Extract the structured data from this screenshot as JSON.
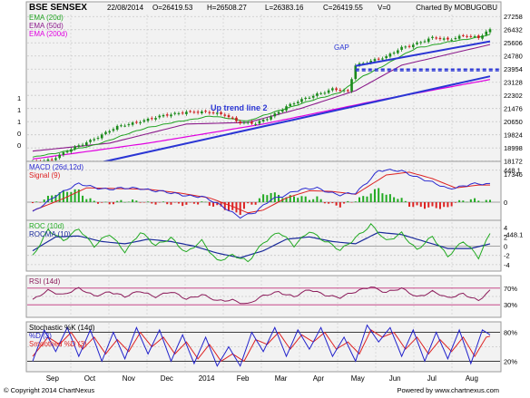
{
  "colors": {
    "panel_bg": "#f2f2f2",
    "grid": "#c8c8c8",
    "candle_up": "#1a8a1a",
    "candle_down": "#cc1f1f",
    "ema20": "#22a322",
    "ema50": "#8b1a8b",
    "ema200": "#e000e0",
    "trend": "#2a35d4",
    "macd": "#2a2ad0",
    "signal": "#dd2222",
    "roc": "#22aa22",
    "rocma": "#1a2a9a",
    "rsi": "#8b1a5a",
    "stoch_k": "#2222cc",
    "stoch_d": "#dd2222",
    "band_line": "#c0307a"
  },
  "header": {
    "index": "BSE SENSEX",
    "date": "22/08/2014",
    "open": "O=26419.53",
    "high": "H=26508.27",
    "low": "L=26383.16",
    "close": "C=26419.55",
    "volume": "V=0",
    "charted_by": "Charted By MOBUGOBU"
  },
  "footer": {
    "copyright": "© Copyright 2014 ChartNexus",
    "powered": "Powered by www.chartnexus.com"
  },
  "chart_data": [
    {
      "type": "candlestick",
      "legend": [
        "EMA (20d)",
        "EMA (50d)",
        "EMA (200d)"
      ],
      "y_ticks": [
        "27258",
        "26432",
        "25606",
        "24780",
        "23954",
        "23128",
        "22302",
        "21476",
        "20650",
        "19824",
        "18998",
        "18172",
        "17346"
      ],
      "left_ticks": [
        "1",
        "1",
        "1",
        "0",
        "0"
      ],
      "ylim": [
        16900,
        27500
      ],
      "annotations": [
        "GAP",
        "Up trend line 2"
      ],
      "x_labels": [
        "Sep",
        "Oct",
        "Nov",
        "Dec",
        "2014",
        "Feb",
        "Mar",
        "Apr",
        "May",
        "Jun",
        "Jul",
        "Aug"
      ],
      "close_keypoints": [
        [
          0,
          18100
        ],
        [
          5,
          18300
        ],
        [
          10,
          18900
        ],
        [
          16,
          19600
        ],
        [
          22,
          20300
        ],
        [
          28,
          20700
        ],
        [
          34,
          21000
        ],
        [
          40,
          21300
        ],
        [
          46,
          21200
        ],
        [
          50,
          21100
        ],
        [
          54,
          20600
        ],
        [
          58,
          20500
        ],
        [
          62,
          21000
        ],
        [
          66,
          21600
        ],
        [
          70,
          22000
        ],
        [
          74,
          22400
        ],
        [
          78,
          22700
        ],
        [
          82,
          22500
        ],
        [
          84,
          24200
        ],
        [
          88,
          24500
        ],
        [
          92,
          24700
        ],
        [
          96,
          25300
        ],
        [
          100,
          25600
        ],
        [
          104,
          25900
        ],
        [
          108,
          25800
        ],
        [
          112,
          26100
        ],
        [
          116,
          25900
        ],
        [
          119,
          26420
        ]
      ],
      "candle_count": 120,
      "ema_20_keypoints": [
        [
          0,
          18400
        ],
        [
          15,
          19100
        ],
        [
          30,
          20300
        ],
        [
          46,
          21000
        ],
        [
          56,
          20700
        ],
        [
          66,
          21500
        ],
        [
          80,
          22500
        ],
        [
          86,
          23500
        ],
        [
          100,
          25300
        ],
        [
          119,
          26100
        ]
      ],
      "ema_50_keypoints": [
        [
          0,
          18800
        ],
        [
          20,
          19300
        ],
        [
          40,
          20500
        ],
        [
          56,
          20600
        ],
        [
          70,
          21500
        ],
        [
          84,
          22600
        ],
        [
          96,
          24200
        ],
        [
          119,
          25500
        ]
      ],
      "ema_200_keypoints": [
        [
          0,
          18300
        ],
        [
          30,
          19300
        ],
        [
          60,
          20500
        ],
        [
          90,
          22000
        ],
        [
          119,
          23300
        ]
      ],
      "trend_lines": [
        {
          "from": [
            1,
            17200
          ],
          "to": [
            119,
            23500
          ]
        },
        {
          "from": [
            84,
            24150
          ],
          "to": [
            119,
            25700
          ]
        }
      ],
      "gap_levels": [
        23850,
        23950
      ]
    },
    {
      "type": "macd",
      "title_parts": [
        "MACD (26d,12d)",
        "Signal (9)"
      ],
      "y_ticks": [
        "448.1",
        "0",
        "-448.1"
      ],
      "ylim": [
        -520,
        520
      ],
      "macd_keypoints": [
        [
          0,
          -150
        ],
        [
          6,
          100
        ],
        [
          12,
          250
        ],
        [
          20,
          180
        ],
        [
          28,
          200
        ],
        [
          36,
          120
        ],
        [
          44,
          80
        ],
        [
          50,
          -80
        ],
        [
          54,
          -200
        ],
        [
          58,
          -150
        ],
        [
          62,
          40
        ],
        [
          68,
          150
        ],
        [
          74,
          200
        ],
        [
          80,
          100
        ],
        [
          84,
          120
        ],
        [
          90,
          450
        ],
        [
          96,
          430
        ],
        [
          102,
          320
        ],
        [
          108,
          180
        ],
        [
          114,
          260
        ],
        [
          119,
          240
        ]
      ],
      "signal_keypoints": [
        [
          0,
          -120
        ],
        [
          8,
          50
        ],
        [
          14,
          200
        ],
        [
          22,
          190
        ],
        [
          30,
          180
        ],
        [
          38,
          130
        ],
        [
          46,
          60
        ],
        [
          52,
          -60
        ],
        [
          56,
          -150
        ],
        [
          60,
          -110
        ],
        [
          66,
          60
        ],
        [
          72,
          160
        ],
        [
          78,
          150
        ],
        [
          84,
          110
        ],
        [
          92,
          380
        ],
        [
          98,
          420
        ],
        [
          104,
          330
        ],
        [
          110,
          200
        ],
        [
          116,
          240
        ],
        [
          119,
          240
        ]
      ]
    },
    {
      "type": "line",
      "title_parts": [
        "ROC (10d)",
        "ROCMA (10)"
      ],
      "y_ticks": [
        "4",
        "2",
        "0",
        "-2",
        "-4"
      ],
      "ylim": [
        -5,
        5
      ],
      "roc_keypoints": [
        [
          0,
          -2
        ],
        [
          4,
          3.5
        ],
        [
          8,
          1
        ],
        [
          12,
          4
        ],
        [
          16,
          0
        ],
        [
          20,
          2.5
        ],
        [
          24,
          -1
        ],
        [
          28,
          3
        ],
        [
          32,
          0
        ],
        [
          36,
          2
        ],
        [
          40,
          -1.5
        ],
        [
          44,
          1
        ],
        [
          48,
          -3
        ],
        [
          52,
          -2
        ],
        [
          56,
          -3.5
        ],
        [
          60,
          1
        ],
        [
          64,
          3
        ],
        [
          68,
          0
        ],
        [
          72,
          3.5
        ],
        [
          76,
          1
        ],
        [
          80,
          -1
        ],
        [
          84,
          2
        ],
        [
          88,
          4.5
        ],
        [
          92,
          1
        ],
        [
          96,
          3
        ],
        [
          100,
          -1
        ],
        [
          104,
          2
        ],
        [
          108,
          -2
        ],
        [
          112,
          1
        ],
        [
          116,
          -2.5
        ],
        [
          119,
          3
        ]
      ],
      "rocma_keypoints": [
        [
          0,
          -1
        ],
        [
          6,
          2
        ],
        [
          12,
          2.2
        ],
        [
          18,
          1
        ],
        [
          24,
          0.5
        ],
        [
          30,
          1.5
        ],
        [
          36,
          1
        ],
        [
          42,
          0
        ],
        [
          48,
          -1.5
        ],
        [
          54,
          -2.5
        ],
        [
          60,
          -1
        ],
        [
          66,
          1.5
        ],
        [
          72,
          2
        ],
        [
          78,
          1
        ],
        [
          84,
          0.5
        ],
        [
          90,
          3
        ],
        [
          96,
          2.5
        ],
        [
          102,
          1
        ],
        [
          108,
          -0.5
        ],
        [
          114,
          -0.5
        ],
        [
          119,
          0.5
        ]
      ]
    },
    {
      "type": "line",
      "title": "RSI (14d)",
      "y_ticks": [
        "70%",
        "30%"
      ],
      "ylim": [
        0,
        100
      ],
      "rsi_keypoints": [
        [
          0,
          40
        ],
        [
          4,
          65
        ],
        [
          8,
          55
        ],
        [
          12,
          68
        ],
        [
          16,
          52
        ],
        [
          20,
          62
        ],
        [
          24,
          48
        ],
        [
          28,
          64
        ],
        [
          32,
          50
        ],
        [
          36,
          60
        ],
        [
          40,
          45
        ],
        [
          44,
          55
        ],
        [
          48,
          38
        ],
        [
          52,
          42
        ],
        [
          56,
          32
        ],
        [
          60,
          50
        ],
        [
          64,
          62
        ],
        [
          68,
          50
        ],
        [
          72,
          65
        ],
        [
          76,
          55
        ],
        [
          80,
          48
        ],
        [
          84,
          60
        ],
        [
          88,
          75
        ],
        [
          92,
          60
        ],
        [
          96,
          68
        ],
        [
          100,
          50
        ],
        [
          104,
          62
        ],
        [
          108,
          45
        ],
        [
          112,
          58
        ],
        [
          116,
          40
        ],
        [
          119,
          62
        ]
      ]
    },
    {
      "type": "line",
      "title_parts": [
        "Stochastic %K (14d)",
        "%D (3)",
        "Smoothed %D (3)"
      ],
      "y_ticks": [
        "80%",
        "20%"
      ],
      "ylim": [
        0,
        100
      ],
      "stoch_k_keypoints": [
        [
          0,
          20
        ],
        [
          3,
          85
        ],
        [
          6,
          40
        ],
        [
          9,
          90
        ],
        [
          12,
          30
        ],
        [
          15,
          85
        ],
        [
          18,
          20
        ],
        [
          21,
          80
        ],
        [
          24,
          25
        ],
        [
          27,
          90
        ],
        [
          30,
          35
        ],
        [
          33,
          85
        ],
        [
          36,
          20
        ],
        [
          39,
          75
        ],
        [
          42,
          15
        ],
        [
          45,
          70
        ],
        [
          48,
          10
        ],
        [
          51,
          50
        ],
        [
          54,
          10
        ],
        [
          57,
          80
        ],
        [
          60,
          40
        ],
        [
          63,
          90
        ],
        [
          66,
          30
        ],
        [
          69,
          85
        ],
        [
          72,
          45
        ],
        [
          75,
          90
        ],
        [
          78,
          30
        ],
        [
          81,
          70
        ],
        [
          84,
          20
        ],
        [
          87,
          95
        ],
        [
          90,
          60
        ],
        [
          93,
          90
        ],
        [
          96,
          30
        ],
        [
          99,
          85
        ],
        [
          102,
          20
        ],
        [
          105,
          80
        ],
        [
          108,
          25
        ],
        [
          111,
          85
        ],
        [
          114,
          15
        ],
        [
          117,
          85
        ],
        [
          119,
          75
        ]
      ],
      "stoch_d_keypoints": [
        [
          0,
          30
        ],
        [
          4,
          70
        ],
        [
          7,
          55
        ],
        [
          10,
          80
        ],
        [
          13,
          45
        ],
        [
          16,
          70
        ],
        [
          19,
          35
        ],
        [
          22,
          65
        ],
        [
          25,
          40
        ],
        [
          28,
          80
        ],
        [
          31,
          50
        ],
        [
          34,
          70
        ],
        [
          37,
          35
        ],
        [
          40,
          60
        ],
        [
          43,
          25
        ],
        [
          46,
          55
        ],
        [
          49,
          20
        ],
        [
          52,
          35
        ],
        [
          55,
          20
        ],
        [
          58,
          65
        ],
        [
          61,
          55
        ],
        [
          64,
          80
        ],
        [
          67,
          45
        ],
        [
          70,
          75
        ],
        [
          73,
          60
        ],
        [
          76,
          80
        ],
        [
          79,
          45
        ],
        [
          82,
          60
        ],
        [
          85,
          35
        ],
        [
          88,
          85
        ],
        [
          91,
          70
        ],
        [
          94,
          80
        ],
        [
          97,
          45
        ],
        [
          100,
          70
        ],
        [
          103,
          35
        ],
        [
          106,
          65
        ],
        [
          109,
          40
        ],
        [
          112,
          70
        ],
        [
          115,
          30
        ],
        [
          118,
          70
        ],
        [
          119,
          72
        ]
      ]
    }
  ]
}
